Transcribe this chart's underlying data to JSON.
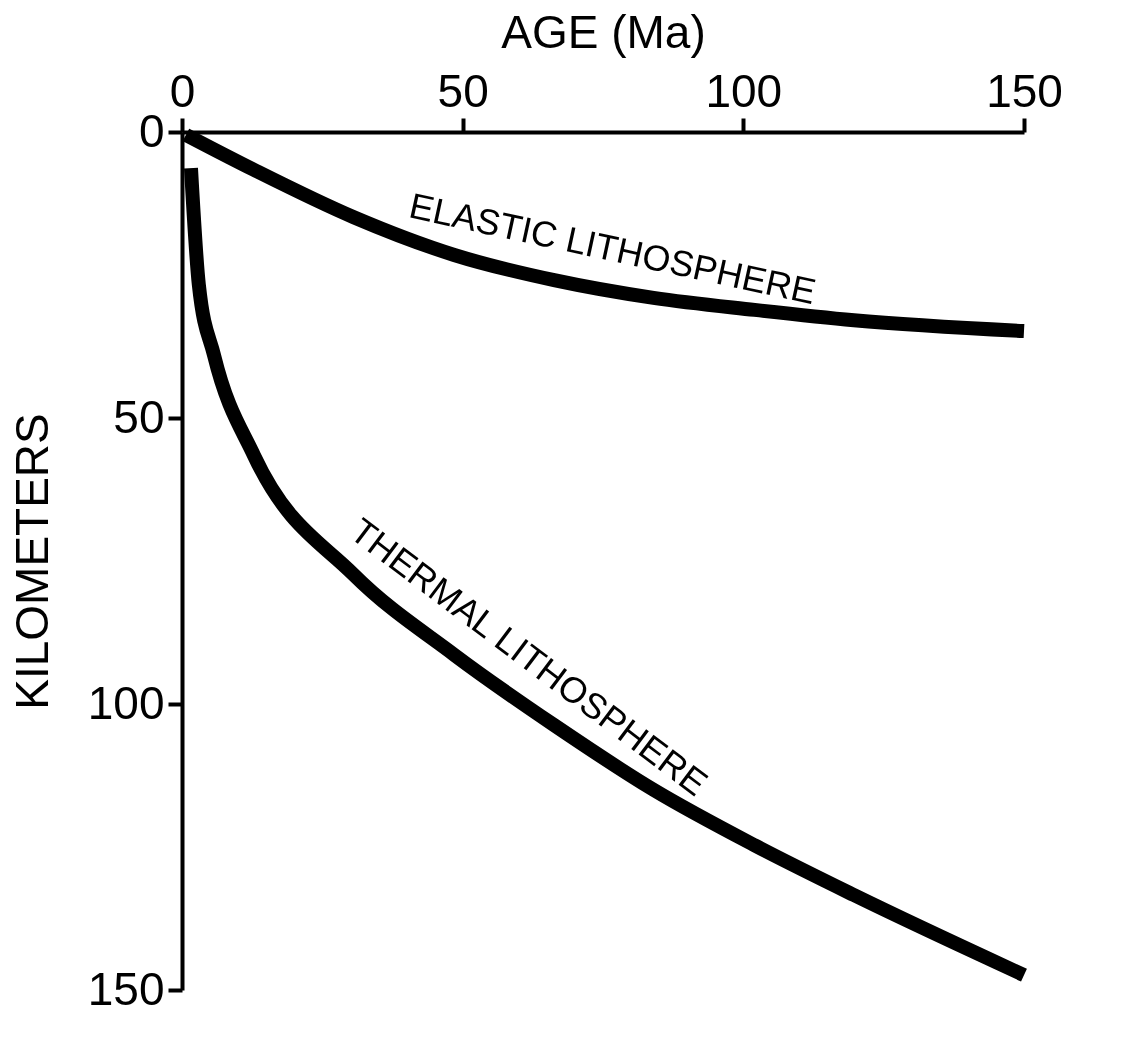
{
  "chart_data": {
    "type": "line",
    "xlabel": "AGE (Ma)",
    "ylabel": "KILOMETERS",
    "xlim": [
      0,
      150
    ],
    "ylim": [
      150,
      0
    ],
    "xticks": [
      0,
      50,
      100,
      150
    ],
    "yticks": [
      0,
      50,
      100,
      150
    ],
    "grid": false,
    "marker": "none",
    "line_style": "solid",
    "series": [
      {
        "name": "ELASTIC LITHOSPHERE",
        "color": "#000000",
        "x": [
          0.7,
          12.8,
          30.6,
          48.5,
          66.3,
          84,
          102,
          119.7,
          150
        ],
        "values": [
          0.5,
          6.6,
          14.9,
          21.5,
          25.9,
          29,
          31.1,
          32.9,
          34.8
        ]
      },
      {
        "name": "THERMAL LITHOSPHERE",
        "color": "#000000",
        "x": [
          1.6,
          3,
          5.7,
          12.8,
          30.6,
          48.5,
          66.3,
          84,
          102,
          119.7,
          150
        ],
        "values": [
          6.3,
          26.7,
          39,
          56.5,
          77.4,
          91.4,
          103.7,
          115,
          124.7,
          133.4,
          147.4
        ]
      }
    ]
  }
}
